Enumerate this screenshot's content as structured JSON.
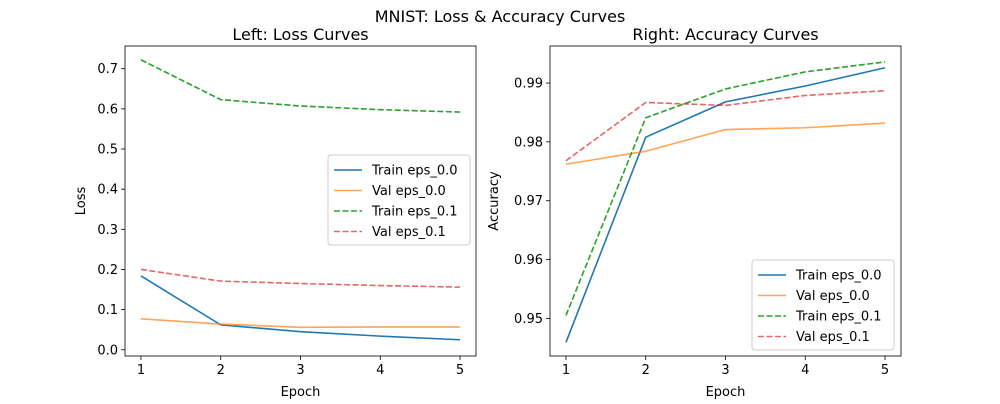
{
  "figure": {
    "suptitle": "MNIST: Loss & Accuracy Curves"
  },
  "chart_data": [
    {
      "type": "line",
      "title": "Left: Loss Curves",
      "xlabel": "Epoch",
      "ylabel": "Loss",
      "x": [
        1,
        2,
        3,
        4,
        5
      ],
      "xticks": [
        "1",
        "2",
        "3",
        "4",
        "5"
      ],
      "xlim": [
        0.8,
        5.2
      ],
      "ylim": [
        -0.0155,
        0.7565
      ],
      "yticks": [
        "0.0",
        "0.1",
        "0.2",
        "0.3",
        "0.4",
        "0.5",
        "0.6",
        "0.7"
      ],
      "ytick_values": [
        0.0,
        0.1,
        0.2,
        0.3,
        0.4,
        0.5,
        0.6,
        0.7
      ],
      "grid": false,
      "legend": "center-right",
      "series": [
        {
          "name": "Train eps_0.0",
          "values": [
            0.184,
            0.062,
            0.045,
            0.034,
            0.025
          ],
          "color": "#1f77b4",
          "linestyle": "solid",
          "alpha": 1.0
        },
        {
          "name": "Val eps_0.0",
          "values": [
            0.077,
            0.064,
            0.056,
            0.057,
            0.057
          ],
          "color": "#ff7f0e",
          "linestyle": "solid",
          "alpha": 0.7
        },
        {
          "name": "Train eps_0.1",
          "values": [
            0.722,
            0.623,
            0.607,
            0.598,
            0.592
          ],
          "color": "#2ca02c",
          "linestyle": "dashed",
          "alpha": 1.0
        },
        {
          "name": "Val eps_0.1",
          "values": [
            0.2,
            0.171,
            0.165,
            0.16,
            0.156
          ],
          "color": "#d62728",
          "linestyle": "dashed",
          "alpha": 0.7
        }
      ]
    },
    {
      "type": "line",
      "title": "Right: Accuracy Curves",
      "xlabel": "Epoch",
      "ylabel": "Accuracy",
      "x": [
        1,
        2,
        3,
        4,
        5
      ],
      "xticks": [
        "1",
        "2",
        "3",
        "4",
        "5"
      ],
      "xlim": [
        0.8,
        5.2
      ],
      "ylim": [
        0.9436,
        0.9963
      ],
      "yticks": [
        "0.95",
        "0.96",
        "0.97",
        "0.98",
        "0.99"
      ],
      "ytick_values": [
        0.95,
        0.96,
        0.97,
        0.98,
        0.99
      ],
      "grid": false,
      "legend": "lower-right",
      "series": [
        {
          "name": "Train eps_0.0",
          "values": [
            0.9459,
            0.9808,
            0.9868,
            0.9895,
            0.9926
          ],
          "color": "#1f77b4",
          "linestyle": "solid",
          "alpha": 1.0
        },
        {
          "name": "Val eps_0.0",
          "values": [
            0.9762,
            0.9784,
            0.9821,
            0.9824,
            0.9832
          ],
          "color": "#ff7f0e",
          "linestyle": "solid",
          "alpha": 0.7
        },
        {
          "name": "Train eps_0.1",
          "values": [
            0.9505,
            0.9841,
            0.989,
            0.9919,
            0.9936
          ],
          "color": "#2ca02c",
          "linestyle": "dashed",
          "alpha": 1.0
        },
        {
          "name": "Val eps_0.1",
          "values": [
            0.9768,
            0.9867,
            0.9862,
            0.9879,
            0.9887
          ],
          "color": "#d62728",
          "linestyle": "dashed",
          "alpha": 0.7
        }
      ]
    }
  ]
}
